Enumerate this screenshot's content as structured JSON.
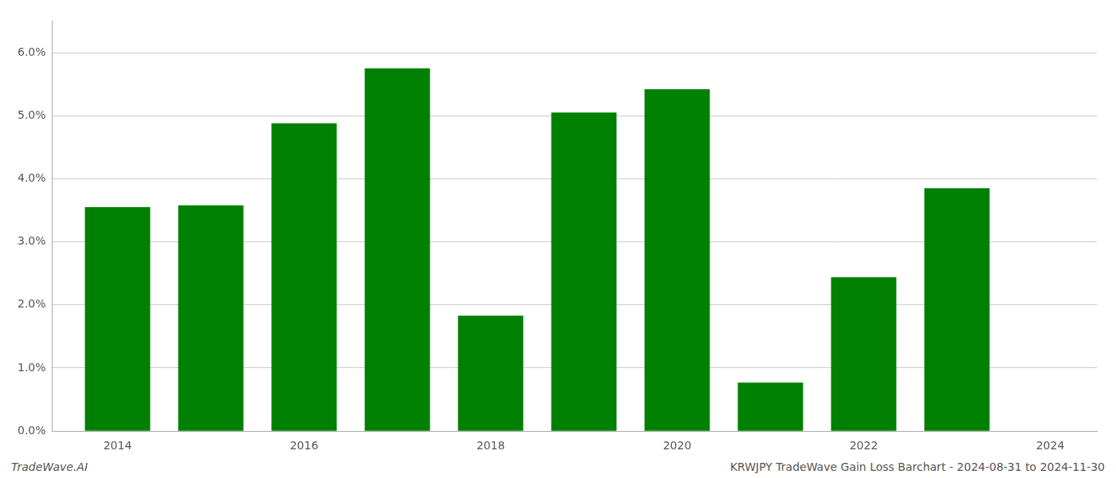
{
  "chart_data": {
    "type": "bar",
    "x": [
      2014,
      2015,
      2016,
      2017,
      2018,
      2019,
      2020,
      2021,
      2022,
      2023
    ],
    "values": [
      0.0355,
      0.0358,
      0.0488,
      0.0575,
      0.0183,
      0.0505,
      0.0542,
      0.0077,
      0.0244,
      0.0385
    ],
    "color": "#008000",
    "xlim": [
      2013.3,
      2024.5
    ],
    "xticks": [
      2014,
      2016,
      2018,
      2020,
      2022,
      2024
    ],
    "ylim": [
      0,
      0.065
    ],
    "yticks": [
      {
        "value": 0.0,
        "label": "0.0%"
      },
      {
        "value": 0.01,
        "label": "1.0%"
      },
      {
        "value": 0.02,
        "label": "2.0%"
      },
      {
        "value": 0.03,
        "label": "3.0%"
      },
      {
        "value": 0.04,
        "label": "4.0%"
      },
      {
        "value": 0.05,
        "label": "5.0%"
      },
      {
        "value": 0.06,
        "label": "6.0%"
      }
    ],
    "grid": true,
    "annotations": [
      "TradeWave.AI",
      "KRWJPY TradeWave Gain Loss Barchart - 2024-08-31 to 2024-11-30"
    ]
  }
}
